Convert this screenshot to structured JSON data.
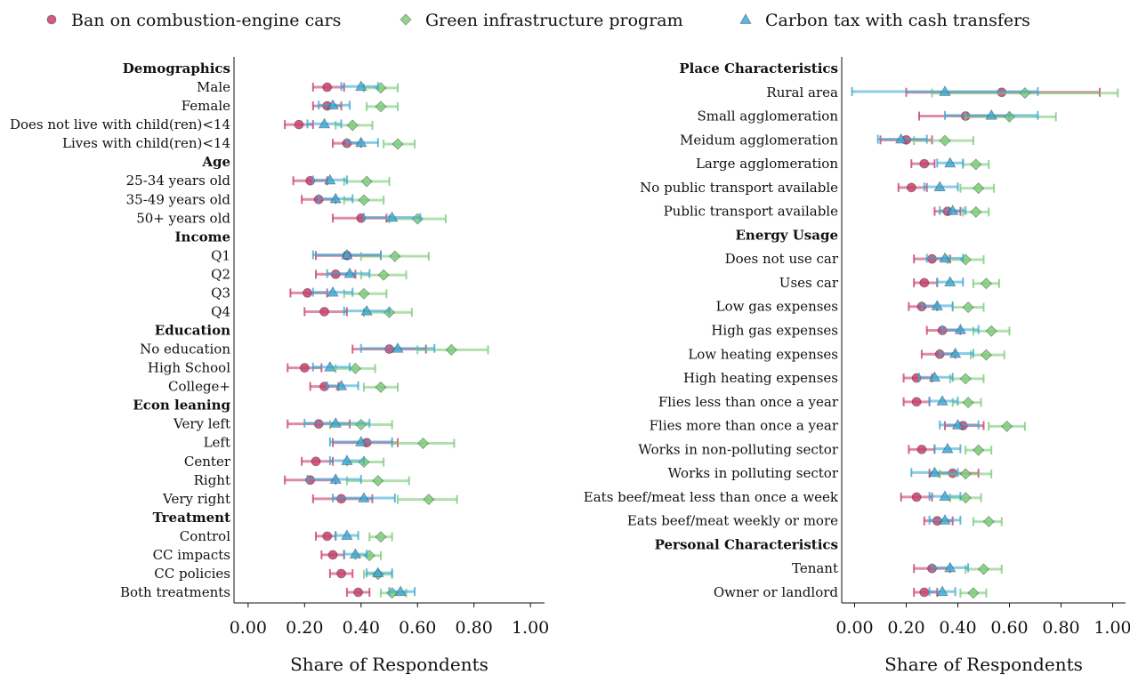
{
  "chart_data": {
    "type": "scatter",
    "legend": {
      "placement": "top",
      "entries": [
        {
          "key": "ban",
          "label": "Ban on combustion-engine cars",
          "color": "#c8416a",
          "marker": "circle"
        },
        {
          "key": "green",
          "label": "Green infrastructure program",
          "color": "#7dcc7a",
          "marker": "diamond"
        },
        {
          "key": "tax",
          "label": "Carbon tax with cash transfers",
          "color": "#3fa9d6",
          "marker": "triangle"
        }
      ]
    },
    "panels": [
      {
        "xlabel": "Share of Respondents",
        "xlim": [
          -0.05,
          1.05
        ],
        "xticks": [
          "0.00",
          "0.20",
          "0.40",
          "0.60",
          "0.80",
          "1.00"
        ],
        "rows": [
          {
            "label": "Demographics",
            "header": true
          },
          {
            "label": "Male",
            "ban": [
              0.28,
              0.23,
              0.34
            ],
            "green": [
              0.47,
              0.41,
              0.53
            ],
            "tax": [
              0.4,
              0.33,
              0.46
            ]
          },
          {
            "label": "Female",
            "ban": [
              0.28,
              0.23,
              0.33
            ],
            "green": [
              0.47,
              0.42,
              0.53
            ],
            "tax": [
              0.3,
              0.25,
              0.36
            ]
          },
          {
            "label": "Does not live with child(ren)<14",
            "ban": [
              0.18,
              0.13,
              0.23
            ],
            "green": [
              0.37,
              0.31,
              0.44
            ],
            "tax": [
              0.27,
              0.21,
              0.33
            ]
          },
          {
            "label": "Lives with child(ren)<14",
            "ban": [
              0.35,
              0.3,
              0.4
            ],
            "green": [
              0.53,
              0.48,
              0.59
            ],
            "tax": [
              0.4,
              0.35,
              0.46
            ]
          },
          {
            "label": "Age",
            "header": true
          },
          {
            "label": "25-34 years old",
            "ban": [
              0.22,
              0.16,
              0.28
            ],
            "green": [
              0.42,
              0.34,
              0.5
            ],
            "tax": [
              0.29,
              0.23,
              0.35
            ]
          },
          {
            "label": "35-49 years old",
            "ban": [
              0.25,
              0.19,
              0.31
            ],
            "green": [
              0.41,
              0.34,
              0.48
            ],
            "tax": [
              0.31,
              0.25,
              0.37
            ]
          },
          {
            "label": "50+ years old",
            "ban": [
              0.4,
              0.3,
              0.49
            ],
            "green": [
              0.6,
              0.5,
              0.7
            ],
            "tax": [
              0.51,
              0.41,
              0.61
            ]
          },
          {
            "label": "Income",
            "header": true
          },
          {
            "label": "Q1",
            "ban": [
              0.35,
              0.24,
              0.47
            ],
            "green": [
              0.52,
              0.4,
              0.64
            ],
            "tax": [
              0.35,
              0.23,
              0.47
            ]
          },
          {
            "label": "Q2",
            "ban": [
              0.31,
              0.24,
              0.38
            ],
            "green": [
              0.48,
              0.4,
              0.56
            ],
            "tax": [
              0.36,
              0.28,
              0.43
            ]
          },
          {
            "label": "Q3",
            "ban": [
              0.21,
              0.15,
              0.28
            ],
            "green": [
              0.41,
              0.34,
              0.49
            ],
            "tax": [
              0.3,
              0.23,
              0.37
            ]
          },
          {
            "label": "Q4",
            "ban": [
              0.27,
              0.2,
              0.35
            ],
            "green": [
              0.5,
              0.41,
              0.58
            ],
            "tax": [
              0.42,
              0.34,
              0.5
            ]
          },
          {
            "label": "Education",
            "header": true
          },
          {
            "label": "No education",
            "ban": [
              0.5,
              0.37,
              0.63
            ],
            "green": [
              0.72,
              0.6,
              0.85
            ],
            "tax": [
              0.53,
              0.4,
              0.66
            ]
          },
          {
            "label": "High School",
            "ban": [
              0.2,
              0.14,
              0.26
            ],
            "green": [
              0.38,
              0.31,
              0.45
            ],
            "tax": [
              0.29,
              0.23,
              0.36
            ]
          },
          {
            "label": "College+",
            "ban": [
              0.27,
              0.22,
              0.32
            ],
            "green": [
              0.47,
              0.41,
              0.53
            ],
            "tax": [
              0.33,
              0.28,
              0.39
            ]
          },
          {
            "label": "Econ leaning",
            "header": true
          },
          {
            "label": "Very left",
            "ban": [
              0.25,
              0.14,
              0.36
            ],
            "green": [
              0.4,
              0.29,
              0.51
            ],
            "tax": [
              0.31,
              0.2,
              0.43
            ]
          },
          {
            "label": "Left",
            "ban": [
              0.42,
              0.3,
              0.53
            ],
            "green": [
              0.62,
              0.51,
              0.73
            ],
            "tax": [
              0.4,
              0.29,
              0.51
            ]
          },
          {
            "label": "Center",
            "ban": [
              0.24,
              0.19,
              0.3
            ],
            "green": [
              0.41,
              0.35,
              0.48
            ],
            "tax": [
              0.35,
              0.29,
              0.41
            ]
          },
          {
            "label": "Right",
            "ban": [
              0.22,
              0.13,
              0.31
            ],
            "green": [
              0.46,
              0.35,
              0.57
            ],
            "tax": [
              0.31,
              0.21,
              0.4
            ]
          },
          {
            "label": "Very right",
            "ban": [
              0.33,
              0.23,
              0.44
            ],
            "green": [
              0.64,
              0.53,
              0.74
            ],
            "tax": [
              0.41,
              0.3,
              0.52
            ]
          },
          {
            "label": "Treatment",
            "header": true
          },
          {
            "label": "Control",
            "ban": [
              0.28,
              0.24,
              0.31
            ],
            "green": [
              0.47,
              0.43,
              0.51
            ],
            "tax": [
              0.35,
              0.31,
              0.39
            ]
          },
          {
            "label": "CC impacts",
            "ban": [
              0.3,
              0.26,
              0.34
            ],
            "green": [
              0.43,
              0.38,
              0.47
            ],
            "tax": [
              0.38,
              0.34,
              0.42
            ]
          },
          {
            "label": "CC policies",
            "ban": [
              0.33,
              0.29,
              0.37
            ],
            "green": [
              0.46,
              0.41,
              0.51
            ],
            "tax": [
              0.46,
              0.42,
              0.51
            ]
          },
          {
            "label": "Both treatments",
            "ban": [
              0.39,
              0.35,
              0.43
            ],
            "green": [
              0.51,
              0.47,
              0.56
            ],
            "tax": [
              0.54,
              0.5,
              0.59
            ]
          }
        ]
      },
      {
        "xlabel": "Share of Respondents",
        "xlim": [
          -0.05,
          1.05
        ],
        "xticks": [
          "0.00",
          "0.20",
          "0.40",
          "0.60",
          "0.80",
          "1.00"
        ],
        "rows": [
          {
            "label": "Place Characteristics",
            "header": true
          },
          {
            "label": "Rural area",
            "ban": [
              0.57,
              0.2,
              0.95
            ],
            "green": [
              0.66,
              0.3,
              1.02
            ],
            "tax": [
              0.35,
              -0.01,
              0.71
            ]
          },
          {
            "label": "Small agglomeration",
            "ban": [
              0.43,
              0.25,
              0.6
            ],
            "green": [
              0.6,
              0.43,
              0.78
            ],
            "tax": [
              0.53,
              0.35,
              0.71
            ]
          },
          {
            "label": "Meidum agglomeration",
            "ban": [
              0.2,
              0.1,
              0.3
            ],
            "green": [
              0.35,
              0.23,
              0.46
            ],
            "tax": [
              0.18,
              0.09,
              0.28
            ]
          },
          {
            "label": "Large agglomeration",
            "ban": [
              0.27,
              0.22,
              0.31
            ],
            "green": [
              0.47,
              0.42,
              0.52
            ],
            "tax": [
              0.37,
              0.32,
              0.42
            ]
          },
          {
            "label": "No public transport available",
            "ban": [
              0.22,
              0.17,
              0.28
            ],
            "green": [
              0.48,
              0.41,
              0.54
            ],
            "tax": [
              0.33,
              0.27,
              0.4
            ]
          },
          {
            "label": "Public transport available",
            "ban": [
              0.36,
              0.31,
              0.41
            ],
            "green": [
              0.47,
              0.42,
              0.52
            ],
            "tax": [
              0.38,
              0.33,
              0.43
            ]
          },
          {
            "label": "Energy Usage",
            "header": true
          },
          {
            "label": "Does not use car",
            "ban": [
              0.3,
              0.23,
              0.37
            ],
            "green": [
              0.43,
              0.36,
              0.5
            ],
            "tax": [
              0.35,
              0.28,
              0.42
            ]
          },
          {
            "label": "Uses car",
            "ban": [
              0.27,
              0.23,
              0.32
            ],
            "green": [
              0.51,
              0.46,
              0.56
            ],
            "tax": [
              0.37,
              0.32,
              0.42
            ]
          },
          {
            "label": "Low gas expenses",
            "ban": [
              0.26,
              0.21,
              0.32
            ],
            "green": [
              0.44,
              0.38,
              0.5
            ],
            "tax": [
              0.32,
              0.26,
              0.38
            ]
          },
          {
            "label": "High gas expenses",
            "ban": [
              0.34,
              0.28,
              0.41
            ],
            "green": [
              0.53,
              0.46,
              0.6
            ],
            "tax": [
              0.41,
              0.34,
              0.48
            ]
          },
          {
            "label": "Low heating expenses",
            "ban": [
              0.33,
              0.26,
              0.39
            ],
            "green": [
              0.51,
              0.45,
              0.58
            ],
            "tax": [
              0.39,
              0.33,
              0.46
            ]
          },
          {
            "label": "High heating expenses",
            "ban": [
              0.24,
              0.19,
              0.3
            ],
            "green": [
              0.43,
              0.37,
              0.5
            ],
            "tax": [
              0.31,
              0.25,
              0.38
            ]
          },
          {
            "label": "Flies less than once a year",
            "ban": [
              0.24,
              0.19,
              0.29
            ],
            "green": [
              0.44,
              0.38,
              0.49
            ],
            "tax": [
              0.34,
              0.29,
              0.4
            ]
          },
          {
            "label": "Flies more than once a year",
            "ban": [
              0.42,
              0.35,
              0.5
            ],
            "green": [
              0.59,
              0.52,
              0.66
            ],
            "tax": [
              0.4,
              0.33,
              0.48
            ]
          },
          {
            "label": "Works in non-polluting sector",
            "ban": [
              0.26,
              0.21,
              0.31
            ],
            "green": [
              0.48,
              0.43,
              0.53
            ],
            "tax": [
              0.36,
              0.31,
              0.41
            ]
          },
          {
            "label": "Works in polluting sector",
            "ban": [
              0.38,
              0.29,
              0.48
            ],
            "green": [
              0.43,
              0.33,
              0.53
            ],
            "tax": [
              0.31,
              0.22,
              0.4
            ]
          },
          {
            "label": "Eats beef/meat less than once a week",
            "ban": [
              0.24,
              0.18,
              0.3
            ],
            "green": [
              0.43,
              0.37,
              0.49
            ],
            "tax": [
              0.35,
              0.29,
              0.41
            ]
          },
          {
            "label": "Eats beef/meat weekly or more",
            "ban": [
              0.32,
              0.27,
              0.38
            ],
            "green": [
              0.52,
              0.46,
              0.57
            ],
            "tax": [
              0.35,
              0.29,
              0.41
            ]
          },
          {
            "label": "Personal Characteristics",
            "header": true
          },
          {
            "label": "Tenant",
            "ban": [
              0.3,
              0.23,
              0.37
            ],
            "green": [
              0.5,
              0.43,
              0.57
            ],
            "tax": [
              0.37,
              0.3,
              0.44
            ]
          },
          {
            "label": "Owner or landlord",
            "ban": [
              0.27,
              0.23,
              0.32
            ],
            "green": [
              0.46,
              0.41,
              0.51
            ],
            "tax": [
              0.34,
              0.29,
              0.39
            ]
          }
        ]
      }
    ]
  }
}
